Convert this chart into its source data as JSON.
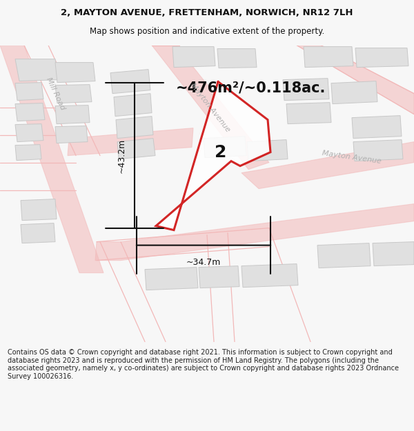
{
  "title_line1": "2, MAYTON AVENUE, FRETTENHAM, NORWICH, NR12 7LH",
  "title_line2": "Map shows position and indicative extent of the property.",
  "area_label": "~476m²/~0.118ac.",
  "plot_number": "2",
  "dim_horizontal": "~34.7m",
  "dim_vertical": "~43.2m",
  "road_label_mayton_upper": "Mayton Avenue",
  "road_label_mayton_lower": "Mayton Avenue",
  "road_label_mill": "Mill Road",
  "footer_text": "Contains OS data © Crown copyright and database right 2021. This information is subject to Crown copyright and database rights 2023 and is reproduced with the permission of HM Land Registry. The polygons (including the associated geometry, namely x, y co-ordinates) are subject to Crown copyright and database rights 2023 Ordnance Survey 100026316.",
  "bg_color": "#f7f7f7",
  "map_bg": "#ffffff",
  "road_line_color": "#f2b8b8",
  "building_fill": "#e0e0e0",
  "building_edge": "#c8c8c8",
  "plot_fill": "none",
  "plot_edge": "#cc0000",
  "dim_line_color": "#111111",
  "text_dark": "#111111",
  "text_road": "#b0b0b0",
  "title_fontsize": 9.5,
  "subtitle_fontsize": 8.5,
  "area_fontsize": 15,
  "plot_num_fontsize": 18,
  "dim_fontsize": 9,
  "road_label_fontsize": 8,
  "footer_fontsize": 7.0
}
